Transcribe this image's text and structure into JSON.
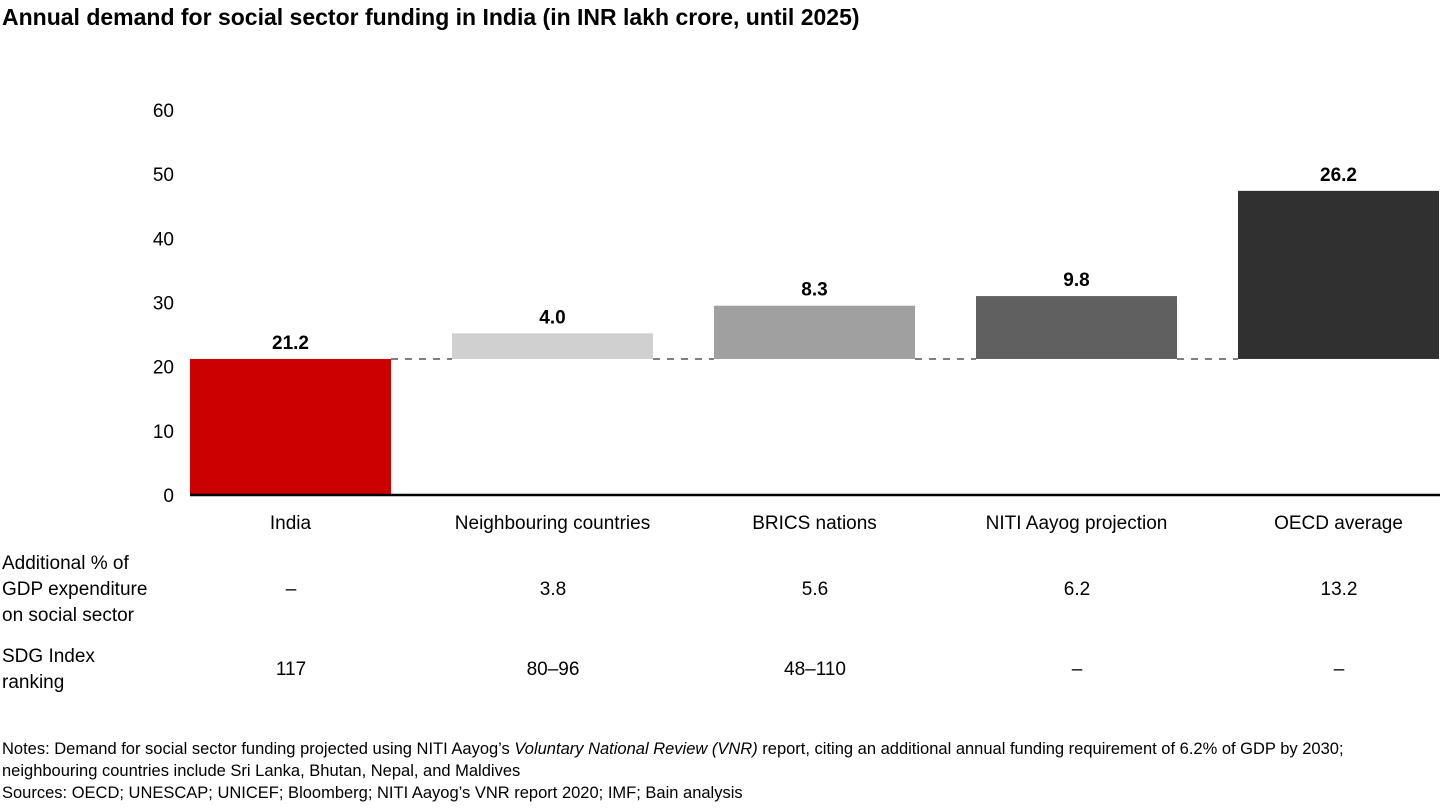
{
  "title": "Annual demand for social sector funding in India (in INR lakh crore, until 2025)",
  "chart_data": {
    "type": "bar",
    "subtype": "waterfall",
    "title": "Annual demand for social sector funding in India (in INR lakh crore, until 2025)",
    "xlabel": "",
    "ylabel": "",
    "ylim": [
      0,
      60
    ],
    "yticks": [
      0,
      10,
      20,
      30,
      40,
      50,
      60
    ],
    "grid": false,
    "categories": [
      "India",
      "Neighbouring countries",
      "BRICS nations",
      "NITI Aayog projection",
      "OECD average"
    ],
    "values": [
      21.2,
      4.0,
      8.3,
      9.8,
      26.2
    ],
    "value_labels": [
      "21.2",
      "4.0",
      "8.3",
      "9.8",
      "26.2"
    ],
    "base": [
      0,
      21.2,
      21.2,
      21.2,
      21.2
    ],
    "colors": [
      "#cc0000",
      "#d0d0d0",
      "#a0a0a0",
      "#606060",
      "#303030"
    ],
    "baseline_reference": 21.2
  },
  "table": {
    "rows": [
      {
        "label_lines": [
          "Additional % of",
          "GDP expenditure",
          "on social sector"
        ],
        "values": [
          "–",
          "3.8",
          "5.6",
          "6.2",
          "13.2"
        ]
      },
      {
        "label_lines": [
          "SDG Index",
          "ranking"
        ],
        "values": [
          "117",
          "80–96",
          "48–110",
          "–",
          "–"
        ]
      }
    ]
  },
  "notes": {
    "prefix": "Notes: Demand for social sector funding projected using NITI Aayog’s ",
    "italic": "Voluntary National Review (VNR)",
    "suffix": " report, citing an additional annual funding requirement of 6.2% of GDP by 2030; neighbouring countries include Sri Lanka, Bhutan, Nepal, and Maldives",
    "sources": "Sources: OECD; UNESCAP; UNICEF; Bloomberg; NITI Aayog’s VNR report 2020; IMF; Bain analysis"
  }
}
